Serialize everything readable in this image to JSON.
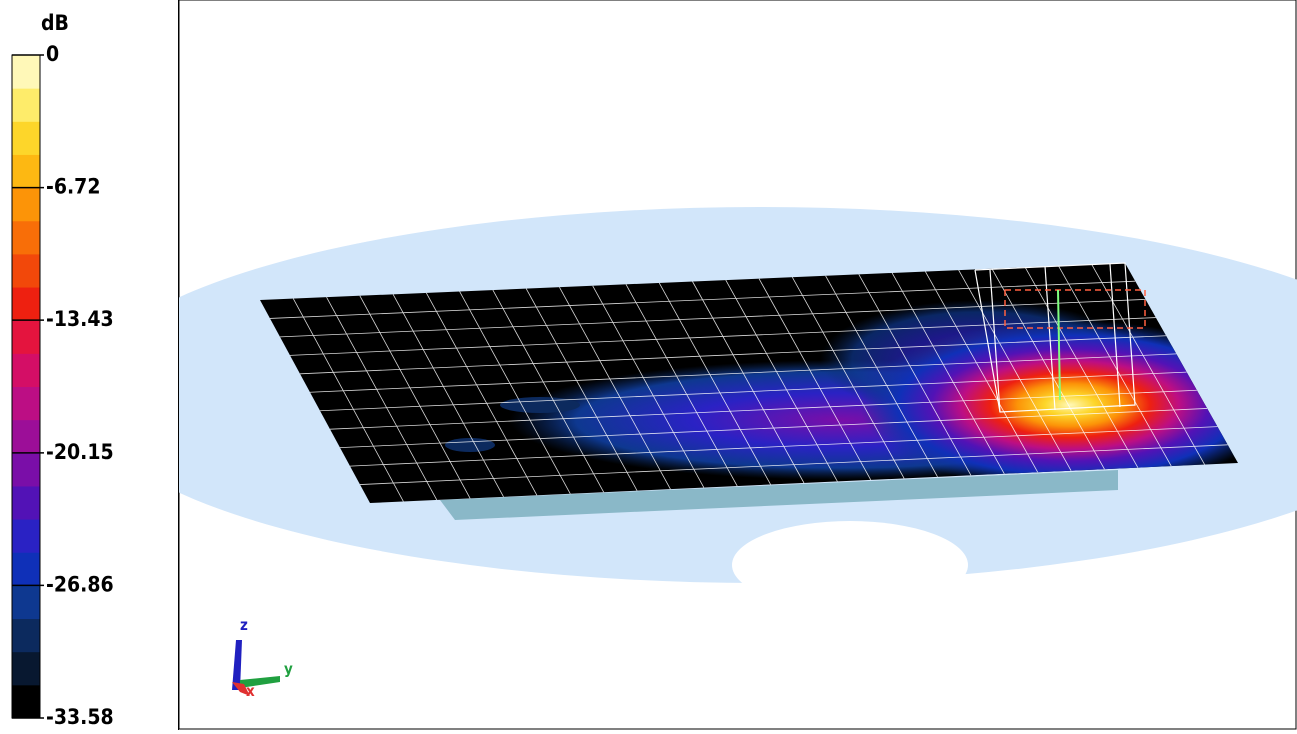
{
  "colorbar": {
    "unit": "dB",
    "ticks": [
      0,
      -6.72,
      -13.43,
      -20.15,
      -26.86,
      -33.58
    ],
    "colors": [
      "#000000",
      "#081830",
      "#0c2a5e",
      "#0e3890",
      "#0f30b8",
      "#2a22c4",
      "#5212b6",
      "#7a0ea8",
      "#9c0e98",
      "#bc0e84",
      "#d40e66",
      "#e4143e",
      "#ee2010",
      "#f2480a",
      "#f86e08",
      "#fc9408",
      "#fdb812",
      "#fdd62a",
      "#feec6a",
      "#fff8b8"
    ]
  },
  "triad": {
    "z": "z",
    "y": "y",
    "x": "x"
  }
}
